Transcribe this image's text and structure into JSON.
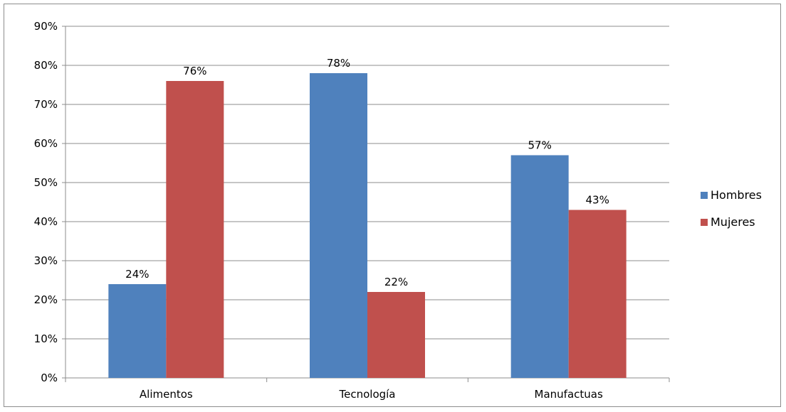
{
  "chart_data": {
    "type": "bar",
    "categories": [
      "Alimentos",
      "Tecnología",
      "Manufactuas"
    ],
    "series": [
      {
        "name": "Hombres",
        "values": [
          24,
          78,
          57
        ],
        "color": "#4F81BD"
      },
      {
        "name": "Mujeres",
        "values": [
          76,
          22,
          43
        ],
        "color": "#C0504D"
      }
    ],
    "data_labels": [
      [
        "24%",
        "78%",
        "57%"
      ],
      [
        "76%",
        "22%",
        "43%"
      ]
    ],
    "y_ticks": [
      "0%",
      "10%",
      "20%",
      "30%",
      "40%",
      "50%",
      "60%",
      "70%",
      "80%",
      "90%"
    ],
    "ylim": [
      0,
      90
    ],
    "y_unit": "%",
    "grid": true,
    "legend_position": "right",
    "title": "",
    "xlabel": "",
    "ylabel": ""
  }
}
